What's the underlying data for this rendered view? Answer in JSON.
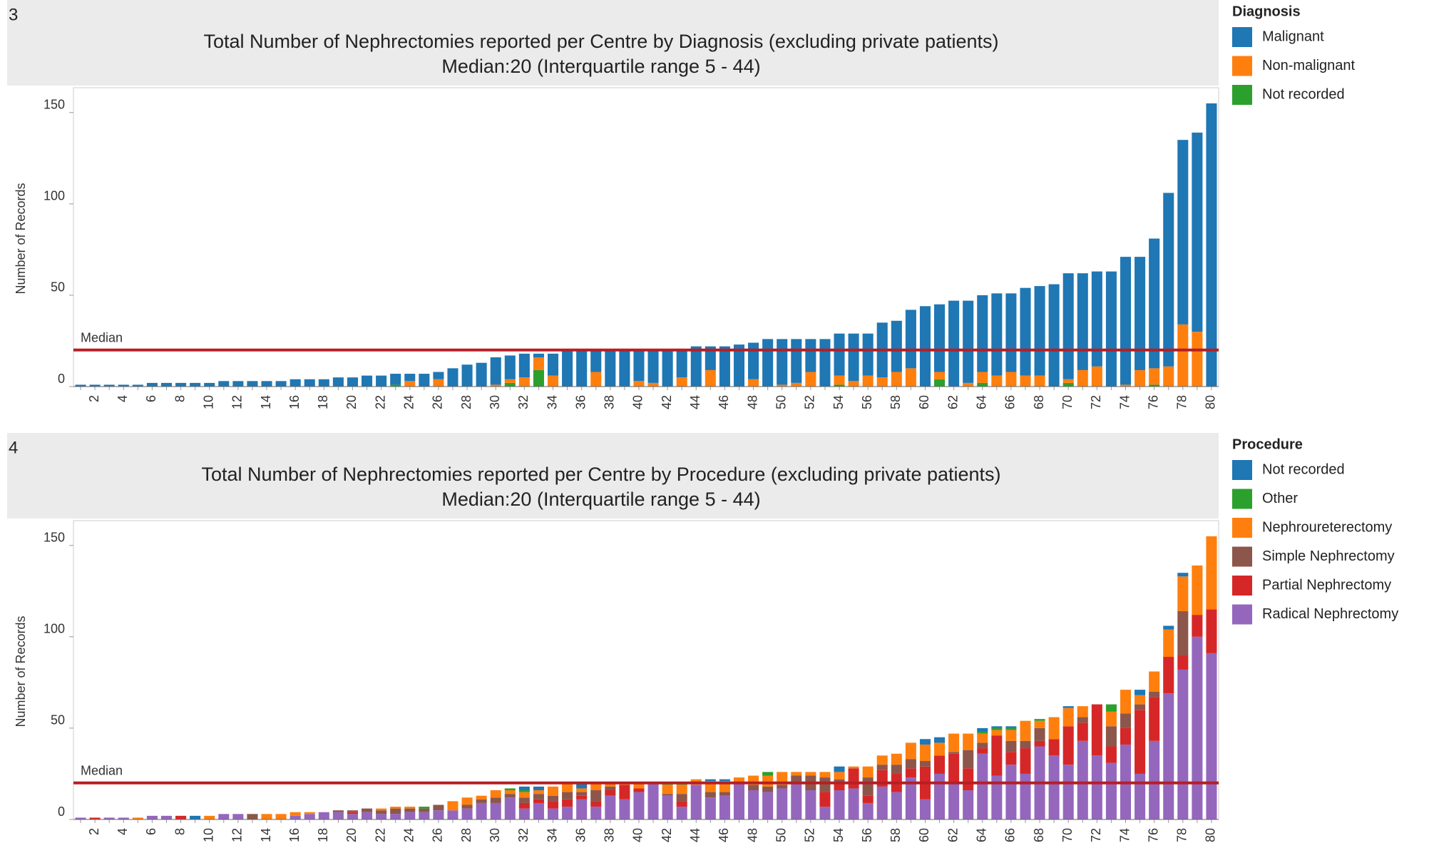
{
  "chart_data": [
    {
      "type": "bar",
      "panel": "3",
      "title": "Total Number of Nephrectomies reported per Centre by Diagnosis (excluding private patients)",
      "subtitle": "Median:20 (Interquartile range 5 - 44)",
      "y_label": "Number of Records",
      "legend_title": "Diagnosis",
      "legend": "right",
      "stacked": true,
      "median": {
        "value": 20,
        "label": "Median"
      },
      "categories": [
        null,
        "2",
        null,
        "4",
        null,
        "6",
        null,
        "8",
        null,
        "10",
        null,
        "12",
        null,
        "14",
        null,
        "16",
        null,
        "18",
        null,
        "20",
        null,
        "22",
        null,
        "24",
        null,
        "26",
        null,
        "28",
        null,
        "30",
        null,
        "32",
        null,
        "34",
        null,
        "36",
        null,
        "38",
        null,
        "40",
        null,
        "42",
        null,
        "44",
        null,
        "46",
        null,
        "48",
        null,
        "50",
        null,
        "52",
        null,
        "54",
        null,
        "56",
        null,
        "58",
        null,
        "60",
        null,
        "62",
        null,
        "64",
        null,
        "66",
        null,
        "68",
        null,
        "70",
        null,
        "72",
        null,
        "74",
        null,
        "76",
        null,
        "78",
        null,
        "80"
      ],
      "ylim": [
        0,
        162
      ],
      "yticks": [
        0,
        50,
        100,
        150
      ],
      "series": [
        {
          "name": "Malignant",
          "color": "#1f77b4",
          "values": [
            1,
            1,
            1,
            1,
            1,
            2,
            2,
            2,
            2,
            2,
            3,
            3,
            3,
            3,
            3,
            4,
            4,
            4,
            5,
            5,
            6,
            6,
            6,
            4,
            7,
            4,
            10,
            12,
            13,
            15,
            13,
            13,
            2,
            12,
            20,
            20,
            12,
            20,
            20,
            17,
            18,
            20,
            15,
            22,
            13,
            22,
            23,
            20,
            26,
            25,
            24,
            18,
            26,
            23,
            26,
            23,
            30,
            28,
            32,
            44,
            37,
            47,
            45,
            42,
            45,
            43,
            48,
            49,
            56,
            58,
            53,
            52,
            63,
            70,
            62,
            71,
            95,
            101,
            109,
            155
          ]
        },
        {
          "name": "Non-malignant",
          "color": "#ff7f0e",
          "values": [
            0,
            0,
            0,
            0,
            0,
            0,
            0,
            0,
            0,
            0,
            0,
            0,
            0,
            0,
            0,
            0,
            0,
            0,
            0,
            0,
            0,
            0,
            0,
            3,
            0,
            4,
            0,
            0,
            0,
            1,
            2,
            5,
            7,
            6,
            0,
            0,
            8,
            0,
            0,
            3,
            2,
            0,
            5,
            0,
            9,
            0,
            0,
            4,
            0,
            1,
            2,
            8,
            0,
            5,
            3,
            6,
            5,
            8,
            10,
            0,
            4,
            0,
            2,
            6,
            6,
            8,
            6,
            6,
            0,
            2,
            9,
            11,
            0,
            1,
            9,
            9,
            11,
            34,
            30,
            0
          ]
        },
        {
          "name": "Not recorded",
          "color": "#2ca02c",
          "values": [
            0,
            0,
            0,
            0,
            0,
            0,
            0,
            0,
            0,
            0,
            0,
            0,
            0,
            0,
            0,
            0,
            0,
            0,
            0,
            0,
            0,
            0,
            1,
            0,
            0,
            0,
            0,
            0,
            0,
            0,
            2,
            0,
            9,
            0,
            0,
            0,
            0,
            0,
            0,
            0,
            0,
            0,
            0,
            0,
            0,
            0,
            0,
            0,
            0,
            0,
            0,
            0,
            0,
            1,
            0,
            0,
            0,
            0,
            0,
            0,
            4,
            0,
            0,
            2,
            0,
            0,
            0,
            0,
            0,
            2,
            0,
            0,
            0,
            0,
            0,
            1,
            0,
            0,
            0,
            0
          ]
        }
      ]
    },
    {
      "type": "bar",
      "panel": "4",
      "title": "Total Number of Nephrectomies reported per Centre by Procedure (excluding private patients)",
      "subtitle": "Median:20 (Interquartile range 5 - 44)",
      "y_label": "Number of Records",
      "legend_title": "Procedure",
      "legend": "right",
      "stacked": true,
      "median": {
        "value": 20,
        "label": "Median"
      },
      "categories": [
        null,
        "2",
        null,
        "4",
        null,
        "6",
        null,
        "8",
        null,
        "10",
        null,
        "12",
        null,
        "14",
        null,
        "16",
        null,
        "18",
        null,
        "20",
        null,
        "22",
        null,
        "24",
        null,
        "26",
        null,
        "28",
        null,
        "30",
        null,
        "32",
        null,
        "34",
        null,
        "36",
        null,
        "38",
        null,
        "40",
        null,
        "42",
        null,
        "44",
        null,
        "46",
        null,
        "48",
        null,
        "50",
        null,
        "52",
        null,
        "54",
        null,
        "56",
        null,
        "58",
        null,
        "60",
        null,
        "62",
        null,
        "64",
        null,
        "66",
        null,
        "68",
        null,
        "70",
        null,
        "72",
        null,
        "74",
        null,
        "76",
        null,
        "78",
        null,
        "80"
      ],
      "ylim": [
        0,
        162
      ],
      "yticks": [
        0,
        50,
        100,
        150
      ],
      "series": [
        {
          "name": "Not recorded",
          "color": "#1f77b4",
          "values": [
            0,
            0,
            0,
            0,
            0,
            0,
            0,
            0,
            2,
            0,
            0,
            0,
            0,
            0,
            0,
            0,
            0,
            0,
            0,
            0,
            0,
            0,
            0,
            0,
            0,
            0,
            0,
            0,
            0,
            0,
            0,
            2,
            2,
            0,
            0,
            3,
            0,
            0,
            0,
            0,
            0,
            0,
            0,
            0,
            1,
            1,
            0,
            0,
            0,
            0,
            0,
            0,
            0,
            3,
            0,
            0,
            0,
            0,
            0,
            3,
            3,
            0,
            0,
            2,
            1,
            1,
            0,
            0,
            0,
            1,
            0,
            0,
            0,
            0,
            3,
            0,
            2,
            2,
            0,
            0
          ]
        },
        {
          "name": "Other",
          "color": "#2ca02c",
          "values": [
            0,
            0,
            0,
            0,
            0,
            0,
            0,
            0,
            0,
            0,
            0,
            0,
            0,
            0,
            0,
            0,
            0,
            0,
            0,
            0,
            0,
            0,
            0,
            0,
            1,
            0,
            0,
            0,
            0,
            0,
            1,
            1,
            0,
            0,
            0,
            0,
            0,
            0,
            0,
            0,
            0,
            1,
            1,
            0,
            0,
            0,
            0,
            0,
            2,
            0,
            0,
            0,
            0,
            0,
            0,
            0,
            0,
            0,
            0,
            0,
            0,
            0,
            0,
            1,
            1,
            1,
            0,
            1,
            0,
            0,
            0,
            0,
            4,
            0,
            0,
            0,
            0,
            0,
            0,
            0
          ]
        },
        {
          "name": "Nephroureterectomy",
          "color": "#ff7f0e",
          "values": [
            0,
            0,
            0,
            0,
            1,
            0,
            0,
            0,
            0,
            2,
            0,
            0,
            0,
            3,
            3,
            2,
            1,
            0,
            0,
            0,
            0,
            1,
            1,
            1,
            0,
            0,
            5,
            4,
            2,
            4,
            2,
            3,
            2,
            5,
            5,
            2,
            4,
            2,
            1,
            3,
            0,
            5,
            5,
            3,
            6,
            6,
            3,
            5,
            6,
            7,
            2,
            2,
            3,
            4,
            1,
            6,
            5,
            6,
            9,
            9,
            7,
            10,
            9,
            5,
            3,
            6,
            11,
            4,
            12,
            10,
            6,
            0,
            8,
            13,
            5,
            11,
            15,
            19,
            27,
            40
          ]
        },
        {
          "name": "Simple Nephrectomy",
          "color": "#8c564b",
          "values": [
            0,
            0,
            0,
            0,
            0,
            0,
            0,
            0,
            0,
            0,
            0,
            0,
            3,
            0,
            0,
            0,
            0,
            0,
            1,
            1,
            2,
            2,
            3,
            2,
            2,
            3,
            0,
            2,
            2,
            3,
            2,
            3,
            3,
            3,
            4,
            2,
            6,
            2,
            0,
            0,
            0,
            1,
            4,
            0,
            3,
            2,
            0,
            3,
            3,
            2,
            4,
            8,
            8,
            2,
            0,
            10,
            3,
            5,
            5,
            3,
            0,
            1,
            10,
            3,
            0,
            6,
            4,
            7,
            0,
            0,
            3,
            0,
            11,
            8,
            3,
            3,
            0,
            24,
            0,
            0
          ]
        },
        {
          "name": "Partial Nephrectomy",
          "color": "#d62728",
          "values": [
            0,
            1,
            0,
            0,
            0,
            0,
            0,
            2,
            0,
            0,
            0,
            0,
            0,
            0,
            0,
            0,
            0,
            0,
            0,
            1,
            0,
            0,
            0,
            0,
            0,
            0,
            0,
            0,
            0,
            0,
            0,
            3,
            2,
            4,
            4,
            2,
            3,
            3,
            8,
            2,
            0,
            0,
            3,
            0,
            0,
            0,
            0,
            0,
            0,
            0,
            0,
            0,
            8,
            4,
            11,
            4,
            9,
            10,
            5,
            18,
            10,
            16,
            12,
            3,
            22,
            7,
            14,
            3,
            9,
            21,
            10,
            28,
            9,
            9,
            35,
            24,
            20,
            8,
            12,
            24
          ]
        },
        {
          "name": "Radical Nephrectomy",
          "color": "#9467bd",
          "values": [
            1,
            0,
            1,
            1,
            0,
            2,
            2,
            0,
            0,
            0,
            3,
            3,
            0,
            0,
            0,
            2,
            3,
            4,
            4,
            3,
            4,
            3,
            3,
            4,
            4,
            5,
            5,
            6,
            9,
            9,
            12,
            6,
            9,
            6,
            7,
            11,
            7,
            13,
            11,
            15,
            20,
            13,
            7,
            19,
            12,
            13,
            20,
            16,
            15,
            17,
            20,
            16,
            7,
            16,
            17,
            9,
            18,
            15,
            23,
            11,
            25,
            20,
            16,
            36,
            24,
            30,
            25,
            40,
            35,
            30,
            43,
            35,
            31,
            41,
            25,
            43,
            69,
            82,
            100,
            91
          ]
        }
      ]
    }
  ]
}
